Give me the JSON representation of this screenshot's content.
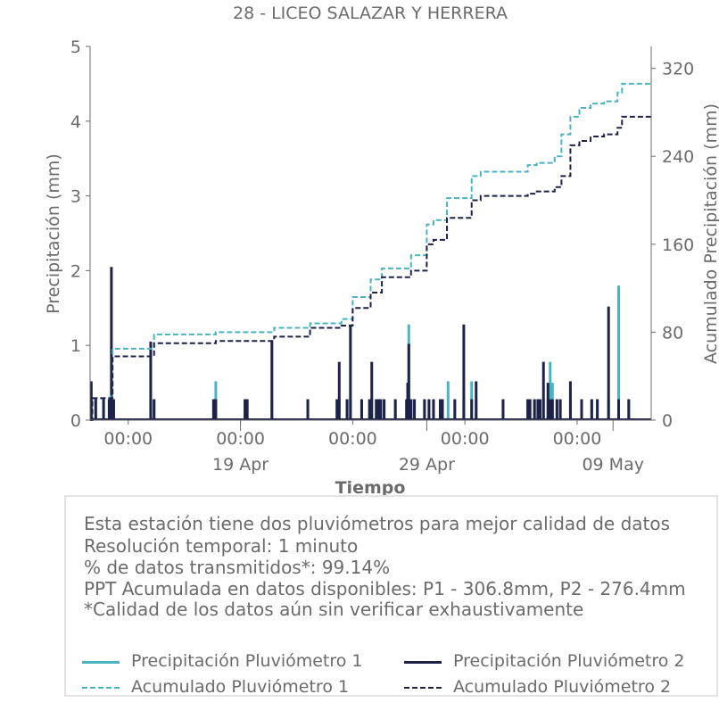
{
  "chart_data": {
    "type": "bar+line",
    "title": "28 - LICEO SALAZAR Y HERRERA",
    "xlabel": "Tiempo",
    "ylabel_left": "Precipitación (mm)",
    "ylabel_right": "Acumulado Precipitación (mm)",
    "ylim_left": [
      0,
      5
    ],
    "ylim_right": [
      0,
      340
    ],
    "yticks_left": [
      "0",
      "1",
      "2",
      "3",
      "4",
      "5"
    ],
    "yticks_right": [
      "0",
      "80",
      "160",
      "240",
      "320"
    ],
    "x_tick_times": [
      "00:00",
      "00:00",
      "00:00",
      "00:00",
      "00:00"
    ],
    "x_tick_dates": [
      "19 Apr",
      "29 Apr",
      "09 May"
    ],
    "x_range_days": [
      0,
      25.0
    ],
    "x_tick_positions_days": [
      1.7,
      6.7,
      11.7,
      16.7,
      21.7
    ],
    "x_date_positions_days": [
      6.7,
      15.0,
      23.3
    ],
    "grid": false,
    "colors": {
      "p1": "#4bb3c1",
      "p2": "#1e2148"
    },
    "series": [
      {
        "name": "Precipitación Pluviómetro 1",
        "axis": "left",
        "style": "bar",
        "color": "#4bb3c1",
        "x": [
          0.05,
          0.25,
          0.6,
          0.85,
          0.95,
          1.05,
          2.7,
          2.85,
          5.5,
          5.6,
          6.9,
          7.0,
          8.1,
          9.7,
          11.0,
          11.1,
          11.45,
          11.6,
          12.1,
          12.45,
          12.55,
          12.75,
          12.85,
          12.95,
          13.1,
          13.6,
          14.1,
          14.15,
          14.2,
          14.3,
          14.45,
          14.9,
          15.1,
          15.3,
          15.6,
          15.7,
          15.95,
          16.25,
          16.65,
          17.0,
          17.2,
          18.4,
          19.5,
          19.6,
          19.8,
          19.95,
          20.05,
          20.2,
          20.4,
          20.5,
          20.6,
          20.8,
          20.95,
          21.4,
          21.9,
          22.35,
          22.6,
          23.1,
          23.55,
          24.0
        ],
        "values": [
          0.5,
          0.28,
          0.28,
          0.28,
          0.5,
          0.28,
          0.28,
          0.28,
          0.28,
          0.52,
          0.28,
          0.28,
          0.28,
          0.28,
          0.28,
          0.28,
          0.28,
          0.28,
          0.28,
          0.28,
          0.28,
          0.28,
          0.28,
          0.28,
          0.28,
          0.28,
          0.28,
          0.5,
          1.28,
          0.28,
          0.28,
          0.28,
          0.28,
          0.28,
          0.28,
          0.28,
          0.52,
          0.28,
          0.28,
          0.52,
          0.28,
          0.28,
          0.28,
          0.28,
          0.28,
          0.28,
          0.28,
          0.28,
          0.28,
          0.78,
          0.5,
          0.28,
          0.28,
          0.28,
          0.28,
          0.28,
          0.28,
          0.28,
          1.8,
          0.28
        ]
      },
      {
        "name": "Precipitación Pluviómetro 2",
        "axis": "left",
        "style": "bar",
        "color": "#1e2148",
        "x": [
          0.05,
          0.25,
          0.6,
          0.85,
          0.95,
          1.05,
          2.7,
          2.85,
          5.5,
          5.6,
          6.9,
          7.0,
          8.1,
          9.7,
          11.0,
          11.1,
          11.45,
          11.6,
          12.1,
          12.45,
          12.55,
          12.75,
          12.85,
          12.95,
          13.1,
          13.6,
          14.1,
          14.15,
          14.2,
          14.3,
          14.45,
          14.9,
          15.1,
          15.3,
          15.6,
          15.7,
          16.25,
          16.65,
          17.0,
          17.2,
          18.4,
          19.5,
          19.6,
          19.8,
          19.95,
          20.05,
          20.2,
          20.4,
          20.5,
          20.6,
          20.8,
          20.95,
          21.4,
          21.9,
          22.35,
          22.6,
          23.1,
          23.55,
          24.0
        ],
        "values": [
          0.52,
          0.28,
          0.28,
          0.28,
          2.05,
          0.28,
          1.05,
          0.28,
          0.28,
          0.28,
          0.28,
          0.28,
          1.05,
          0.28,
          0.28,
          0.78,
          0.28,
          1.28,
          0.28,
          0.28,
          0.78,
          0.28,
          0.28,
          0.28,
          0.28,
          0.28,
          0.28,
          0.5,
          1.02,
          0.28,
          0.28,
          0.28,
          0.28,
          0.28,
          0.28,
          0.28,
          0.28,
          1.28,
          0.28,
          0.52,
          0.28,
          0.28,
          0.28,
          0.28,
          0.28,
          0.28,
          0.78,
          0.5,
          0.28,
          0.28,
          0.28,
          0.28,
          0.52,
          0.28,
          0.28,
          0.28,
          1.52,
          0.28,
          0.28
        ]
      },
      {
        "name": "Acumulado Pluviómetro 1",
        "axis": "right",
        "style": "dashed-step",
        "color": "#4bb3c1",
        "x": [
          0.0,
          0.1,
          0.9,
          1.0,
          2.7,
          2.85,
          5.4,
          5.6,
          8.0,
          8.2,
          9.6,
          9.8,
          11.0,
          11.2,
          11.5,
          11.7,
          12.2,
          12.5,
          12.8,
          13.0,
          14.0,
          14.3,
          14.5,
          15.0,
          15.3,
          15.6,
          15.9,
          16.3,
          17.0,
          17.4,
          19.5,
          19.9,
          20.4,
          20.7,
          21.0,
          21.4,
          21.8,
          22.3,
          22.9,
          23.5,
          23.7,
          25.0
        ],
        "values": [
          0,
          20,
          22,
          65,
          65,
          78,
          78,
          80,
          80,
          84,
          84,
          88,
          88,
          92,
          92,
          112,
          112,
          128,
          128,
          138,
          138,
          150,
          150,
          178,
          182,
          182,
          202,
          202,
          222,
          226,
          232,
          234,
          234,
          240,
          260,
          276,
          284,
          288,
          290,
          298,
          306,
          306.8
        ]
      },
      {
        "name": "Acumulado Pluviómetro 2",
        "axis": "right",
        "style": "dashed-step",
        "color": "#1e2148",
        "x": [
          0.0,
          0.1,
          0.9,
          1.0,
          2.7,
          2.85,
          5.4,
          5.6,
          8.0,
          8.2,
          9.6,
          9.8,
          11.0,
          11.2,
          11.5,
          11.7,
          12.2,
          12.5,
          12.8,
          13.0,
          14.0,
          14.3,
          14.5,
          15.0,
          15.3,
          15.6,
          15.9,
          16.3,
          17.0,
          17.4,
          19.5,
          19.9,
          20.4,
          20.7,
          21.0,
          21.4,
          21.8,
          22.3,
          22.9,
          23.5,
          23.7,
          25.0
        ],
        "values": [
          0,
          20,
          20,
          58,
          58,
          70,
          70,
          72,
          72,
          76,
          76,
          84,
          84,
          86,
          86,
          102,
          102,
          116,
          116,
          130,
          130,
          136,
          136,
          160,
          164,
          164,
          184,
          184,
          200,
          204,
          206,
          208,
          208,
          212,
          222,
          250,
          254,
          258,
          260,
          266,
          276,
          276.4
        ]
      }
    ]
  },
  "info": {
    "line1": "Esta estación tiene dos pluviómetros para mejor calidad de datos",
    "line2": "Resolución temporal: 1 minuto",
    "line3": "% de datos transmitidos*: 99.14%",
    "line4": "PPT Acumulada en datos disponibles: P1 - 306.8mm, P2 - 276.4mm",
    "line5": "*Calidad de los datos aún sin verificar exhaustivamente"
  },
  "legend": {
    "p1_precip": "Precipitación Pluviómetro 1",
    "p2_precip": "Precipitación Pluviómetro 2",
    "p1_acum": "Acumulado Pluviómetro 1",
    "p2_acum": "Acumulado Pluviómetro 2"
  }
}
